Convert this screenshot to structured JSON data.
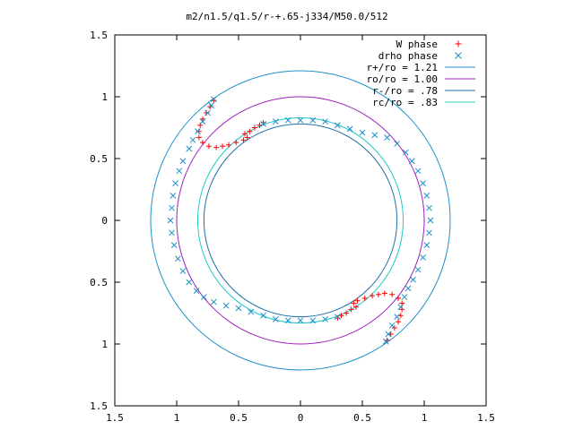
{
  "chart_data": {
    "type": "scatter",
    "title": "m2/n1.5/q1.5/r-+.65-j334/M50.0/512",
    "xlabel": "",
    "ylabel": "",
    "xlim": [
      -1.5,
      1.5
    ],
    "ylim": [
      -1.5,
      1.5
    ],
    "x_ticks": [
      -1.5,
      -1,
      -0.5,
      0,
      0.5,
      1,
      1.5
    ],
    "y_ticks": [
      -1.5,
      -1,
      -0.5,
      0,
      0.5,
      1,
      1.5
    ],
    "x_tick_labels": [
      "1.5",
      "1",
      "0.5",
      "0",
      "0.5",
      "1",
      "1.5"
    ],
    "y_tick_labels": [
      "1.5",
      "1",
      "0.5",
      "0",
      "0.5",
      "1",
      "1.5"
    ],
    "grid": false,
    "legend_position": "top-right",
    "circles": [
      {
        "name": "r+/ro = 1.21",
        "radius": 1.21,
        "color": "#1e90c8"
      },
      {
        "name": "ro/ro = 1.00",
        "radius": 1.0,
        "color": "#a020c0"
      },
      {
        "name": "r-/ro = .78",
        "radius": 0.78,
        "color": "#1e6ea8"
      },
      {
        "name": "rc/ro = .83",
        "radius": 0.83,
        "color": "#20c8c8"
      }
    ],
    "series": [
      {
        "name": "W phase",
        "marker": "plus",
        "color": "#ff0000",
        "points": [
          [
            -0.7,
            0.97
          ],
          [
            -0.73,
            0.92
          ],
          [
            -0.76,
            0.87
          ],
          [
            -0.79,
            0.82
          ],
          [
            -0.81,
            0.77
          ],
          [
            -0.82,
            0.72
          ],
          [
            -0.82,
            0.67
          ],
          [
            -0.79,
            0.63
          ],
          [
            -0.74,
            0.6
          ],
          [
            -0.68,
            0.59
          ],
          [
            -0.63,
            0.6
          ],
          [
            -0.58,
            0.61
          ],
          [
            -0.52,
            0.63
          ],
          [
            -0.46,
            0.65
          ],
          [
            -0.43,
            0.67
          ],
          [
            -0.45,
            0.7
          ],
          [
            -0.41,
            0.72
          ],
          [
            -0.37,
            0.75
          ],
          [
            -0.33,
            0.77
          ],
          [
            -0.3,
            0.79
          ],
          [
            0.7,
            -0.97
          ],
          [
            0.73,
            -0.92
          ],
          [
            0.76,
            -0.87
          ],
          [
            0.79,
            -0.82
          ],
          [
            0.81,
            -0.77
          ],
          [
            0.82,
            -0.72
          ],
          [
            0.82,
            -0.67
          ],
          [
            0.79,
            -0.63
          ],
          [
            0.74,
            -0.6
          ],
          [
            0.68,
            -0.59
          ],
          [
            0.63,
            -0.6
          ],
          [
            0.58,
            -0.61
          ],
          [
            0.52,
            -0.63
          ],
          [
            0.46,
            -0.65
          ],
          [
            0.43,
            -0.67
          ],
          [
            0.45,
            -0.7
          ],
          [
            0.41,
            -0.72
          ],
          [
            0.37,
            -0.75
          ],
          [
            0.33,
            -0.77
          ],
          [
            0.3,
            -0.79
          ]
        ]
      },
      {
        "name": "drho phase",
        "marker": "cross",
        "color": "#1e90c8",
        "points": [
          [
            -0.3,
            0.78
          ],
          [
            -0.2,
            0.8
          ],
          [
            -0.1,
            0.81
          ],
          [
            0.0,
            0.81
          ],
          [
            0.1,
            0.81
          ],
          [
            0.2,
            0.8
          ],
          [
            0.3,
            0.77
          ],
          [
            0.4,
            0.74
          ],
          [
            0.5,
            0.71
          ],
          [
            0.6,
            0.69
          ],
          [
            0.7,
            0.67
          ],
          [
            0.78,
            0.62
          ],
          [
            0.85,
            0.55
          ],
          [
            0.9,
            0.48
          ],
          [
            0.95,
            0.4
          ],
          [
            0.99,
            0.3
          ],
          [
            1.02,
            0.2
          ],
          [
            1.04,
            0.1
          ],
          [
            1.05,
            0.0
          ],
          [
            1.04,
            -0.1
          ],
          [
            1.02,
            -0.2
          ],
          [
            0.99,
            -0.3
          ],
          [
            0.95,
            -0.4
          ],
          [
            0.91,
            -0.48
          ],
          [
            0.87,
            -0.55
          ],
          [
            0.84,
            -0.62
          ],
          [
            0.81,
            -0.7
          ],
          [
            0.78,
            -0.78
          ],
          [
            0.74,
            -0.85
          ],
          [
            0.71,
            -0.92
          ],
          [
            0.69,
            -0.98
          ],
          [
            0.3,
            -0.78
          ],
          [
            0.2,
            -0.8
          ],
          [
            0.1,
            -0.81
          ],
          [
            0.0,
            -0.81
          ],
          [
            -0.1,
            -0.81
          ],
          [
            -0.2,
            -0.8
          ],
          [
            -0.3,
            -0.77
          ],
          [
            -0.4,
            -0.74
          ],
          [
            -0.5,
            -0.71
          ],
          [
            -0.6,
            -0.69
          ],
          [
            -0.7,
            -0.66
          ],
          [
            -0.78,
            -0.62
          ],
          [
            -0.84,
            -0.57
          ],
          [
            -0.9,
            -0.5
          ],
          [
            -0.95,
            -0.41
          ],
          [
            -0.99,
            -0.31
          ],
          [
            -1.02,
            -0.2
          ],
          [
            -1.04,
            -0.1
          ],
          [
            -1.05,
            0.0
          ],
          [
            -1.04,
            0.1
          ],
          [
            -1.03,
            0.2
          ],
          [
            -1.01,
            0.3
          ],
          [
            -0.98,
            0.4
          ],
          [
            -0.95,
            0.48
          ],
          [
            -0.9,
            0.58
          ],
          [
            -0.87,
            0.65
          ],
          [
            -0.83,
            0.72
          ],
          [
            -0.79,
            0.8
          ],
          [
            -0.75,
            0.87
          ],
          [
            -0.72,
            0.93
          ],
          [
            -0.7,
            0.98
          ]
        ]
      }
    ]
  }
}
